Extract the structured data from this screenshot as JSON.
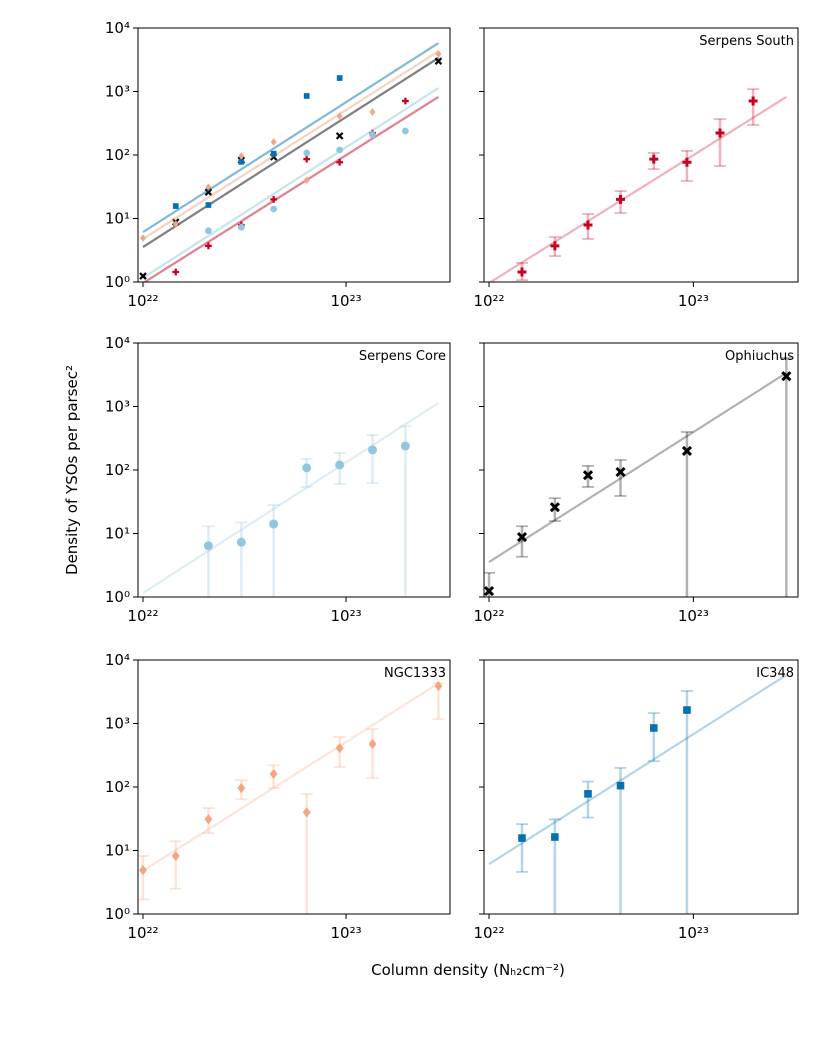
{
  "chart_data": {
    "type": "scatter",
    "xlabel": "Column density (Nₕ₂cm⁻²)",
    "ylabel": "Density of YSOs per parsec²",
    "xscale": "log",
    "yscale": "log",
    "xlim": [
      9.45e+21,
      3.25e+23
    ],
    "ylim": [
      1,
      10000
    ],
    "xticks": [
      {
        "value": 1e+22,
        "label": "10²²"
      },
      {
        "value": 1e+23,
        "label": "10²³"
      }
    ],
    "yticks": [
      {
        "value": 1,
        "label": "10⁰"
      },
      {
        "value": 10,
        "label": "10¹"
      },
      {
        "value": 100,
        "label": "10²"
      },
      {
        "value": 1000,
        "label": "10³"
      },
      {
        "value": 10000,
        "label": "10⁴"
      }
    ],
    "series": [
      {
        "name": "Serpens South",
        "color": "#ca0020",
        "marker": "P",
        "x": [
          1.45e+22,
          2.1e+22,
          3.05e+22,
          4.4e+22,
          6.4e+22,
          9.3e+22,
          1.35e+23,
          1.96e+23
        ],
        "values": [
          1.44,
          3.7,
          7.9,
          20,
          86,
          77,
          222,
          708
        ],
        "lower": [
          1.07,
          2.56,
          4.76,
          12.2,
          60,
          39,
          67,
          297
        ],
        "upper": [
          2.0,
          5.1,
          11.8,
          27,
          108,
          116,
          369,
          1090
        ],
        "fit_x": [
          1.02e+22,
          2.85e+23
        ],
        "fit": [
          1.0,
          820
        ]
      },
      {
        "name": "Serpens Core",
        "color": "#92c5de",
        "marker": "o",
        "x": [
          2.1e+22,
          3.05e+22,
          4.4e+22,
          6.4e+22,
          9.3e+22,
          1.35e+23,
          1.96e+23
        ],
        "values": [
          6.4,
          7.3,
          14.1,
          108,
          120,
          207,
          239
        ],
        "lower": [
          0.5,
          0.5,
          0.5,
          54,
          60,
          62,
          0.5
        ],
        "upper": [
          13,
          15,
          28,
          150,
          185,
          355,
          490
        ],
        "fit_x": [
          1e+22,
          2.85e+23
        ],
        "fit": [
          1.16,
          1135
        ]
      },
      {
        "name": "Ophiuchus",
        "color": "#000000",
        "marker": "X",
        "x": [
          1e+22,
          1.45e+22,
          2.1e+22,
          3.05e+22,
          4.4e+22,
          9.3e+22,
          2.85e+23
        ],
        "values": [
          1.24,
          8.8,
          26,
          83,
          93,
          200,
          3000
        ],
        "lower": [
          0.5,
          4.3,
          15.7,
          54,
          39,
          0.5,
          0.5
        ],
        "upper": [
          2.4,
          13,
          36,
          116,
          144,
          397,
          5800
        ],
        "fit_x": [
          1e+22,
          2.85e+23
        ],
        "fit": [
          3.55,
          3380
        ]
      },
      {
        "name": "NGC1333",
        "color": "#f4a582",
        "marker": "D",
        "x": [
          1e+22,
          1.45e+22,
          2.1e+22,
          3.05e+22,
          4.4e+22,
          6.4e+22,
          9.3e+22,
          1.35e+23,
          2.85e+23
        ],
        "values": [
          4.9,
          8.2,
          31,
          96,
          160,
          40,
          410,
          475,
          3900
        ],
        "lower": [
          1.7,
          2.5,
          18.8,
          64,
          96,
          0.5,
          206,
          138,
          1170
        ],
        "upper": [
          8.2,
          14,
          46.6,
          128,
          220,
          78,
          613,
          820,
          4300
        ],
        "fit_x": [
          1e+22,
          2.85e+23
        ],
        "fit": [
          4.76,
          4300
        ]
      },
      {
        "name": "IC348",
        "color": "#0571b0",
        "marker": "s",
        "x": [
          1.45e+22,
          2.1e+22,
          3.05e+22,
          4.4e+22,
          6.4e+22,
          9.3e+22
        ],
        "values": [
          15.7,
          16.3,
          78,
          105,
          850,
          1630
        ],
        "lower": [
          4.6,
          0.5,
          33,
          0.5,
          255,
          0.5
        ],
        "upper": [
          26,
          31,
          122,
          200,
          1460,
          3250
        ],
        "fit_x": [
          1e+22,
          2.85e+23
        ],
        "fit": [
          6.1,
          5800
        ]
      }
    ]
  }
}
